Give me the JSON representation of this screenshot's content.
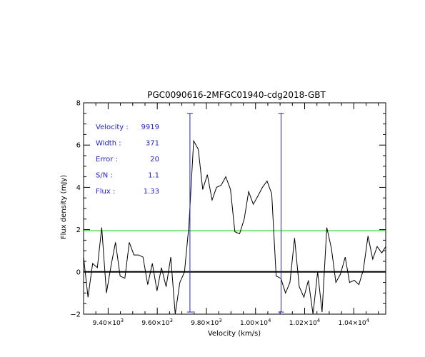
{
  "chart_data": {
    "type": "line",
    "title": "PGC0090616-2MFGC01940-cdg2018-GBT",
    "xlabel": "Velocity (km/s)",
    "ylabel": "Flux density (mJy)",
    "xlim": [
      9300,
      10530
    ],
    "ylim": [
      -2,
      8
    ],
    "xticks": [
      9400,
      9600,
      9800,
      10000,
      10200,
      10400
    ],
    "xtick_labels": [
      {
        "m": "9.40",
        "e": "3"
      },
      {
        "m": "9.60",
        "e": "3"
      },
      {
        "m": "9.80",
        "e": "3"
      },
      {
        "m": "1.00",
        "e": "4"
      },
      {
        "m": "1.02",
        "e": "4"
      },
      {
        "m": "1.04",
        "e": "4"
      }
    ],
    "yticks": [
      -2,
      0,
      2,
      4,
      6,
      8
    ],
    "ytick_labels": [
      "−2",
      "0",
      "2",
      "4",
      "6",
      "8"
    ],
    "spectrum": {
      "x": [
        9300,
        9318,
        9337,
        9356,
        9374,
        9393,
        9412,
        9430,
        9449,
        9468,
        9486,
        9505,
        9524,
        9542,
        9561,
        9580,
        9599,
        9617,
        9636,
        9655,
        9673,
        9692,
        9711,
        9729,
        9748,
        9767,
        9785,
        9804,
        9823,
        9841,
        9860,
        9879,
        9898,
        9916,
        9935,
        9954,
        9972,
        9991,
        10010,
        10028,
        10047,
        10066,
        10084,
        10103,
        10122,
        10140,
        10159,
        10178,
        10197,
        10215,
        10234,
        10253,
        10271,
        10290,
        10309,
        10327,
        10346,
        10365,
        10383,
        10402,
        10421,
        10439,
        10458,
        10477,
        10495,
        10514,
        10530
      ],
      "y": [
        0.7,
        -1.2,
        0.4,
        0.2,
        2.1,
        -1.0,
        0.3,
        1.4,
        -0.2,
        -0.3,
        1.4,
        0.8,
        0.8,
        0.7,
        -0.6,
        0.4,
        -0.9,
        0.2,
        -0.7,
        0.7,
        -2.5,
        -0.5,
        0.0,
        2.2,
        6.2,
        5.8,
        3.9,
        4.6,
        3.4,
        4.0,
        4.1,
        4.5,
        3.9,
        1.9,
        1.8,
        2.5,
        3.8,
        3.2,
        3.6,
        4.0,
        4.3,
        3.7,
        -0.2,
        -0.3,
        -1.0,
        -0.5,
        1.6,
        -0.7,
        -1.2,
        -0.4,
        -2.0,
        0.0,
        -1.9,
        2.1,
        1.1,
        -0.5,
        -0.1,
        0.7,
        -0.5,
        -0.4,
        -0.6,
        0.1,
        1.7,
        0.6,
        1.2,
        0.9,
        1.2
      ]
    },
    "reference_lines": [
      {
        "value": 1.95,
        "color": "#00cc00"
      },
      {
        "value": 0,
        "color": "#000000"
      }
    ],
    "width_markers": {
      "x": [
        9733,
        10104
      ],
      "color": "#2222cc"
    },
    "annotations": [
      {
        "label": "Velocity :",
        "value": "9919"
      },
      {
        "label": "Width :",
        "value": "371"
      },
      {
        "label": "Error :",
        "value": "20"
      },
      {
        "label": "S/N :",
        "value": "1.1"
      },
      {
        "label": "Flux :",
        "value": "1.33"
      }
    ],
    "grid": false,
    "colors": {
      "spectrum": "#000000",
      "annotation": "#2222cc"
    }
  }
}
